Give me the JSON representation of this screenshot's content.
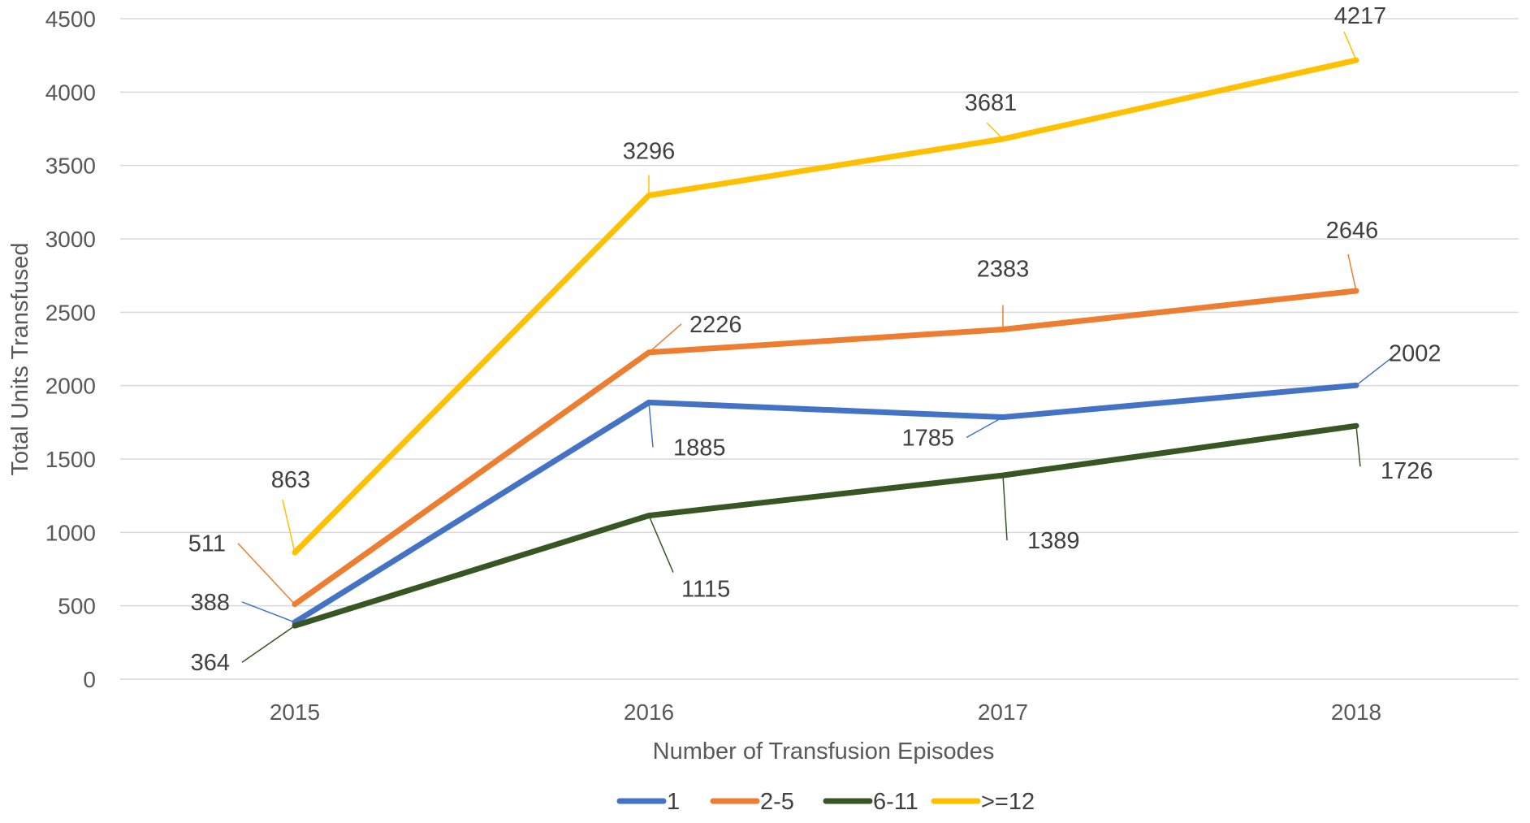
{
  "chart_data": {
    "type": "line",
    "title": "",
    "xlabel": "Number of Transfusion Episodes",
    "ylabel": "Total Units Transfused",
    "categories": [
      "2015",
      "2016",
      "2017",
      "2018"
    ],
    "ylim": [
      0,
      4500
    ],
    "yticks": [
      0,
      500,
      1000,
      1500,
      2000,
      2500,
      3000,
      3500,
      4000,
      4500
    ],
    "grid": true,
    "legend_position": "bottom",
    "series": [
      {
        "name": "1",
        "color": "#4472C4",
        "values": [
          388,
          1885,
          1785,
          2002
        ]
      },
      {
        "name": "2-5",
        "color": "#ED7D31",
        "values": [
          511,
          2226,
          2383,
          2646
        ]
      },
      {
        "name": "6-11",
        "color": "#375623",
        "values": [
          364,
          1115,
          1389,
          1726
        ]
      },
      {
        "name": ">=12",
        "color": "#FFC000",
        "values": [
          863,
          3296,
          3681,
          4217
        ]
      }
    ]
  }
}
